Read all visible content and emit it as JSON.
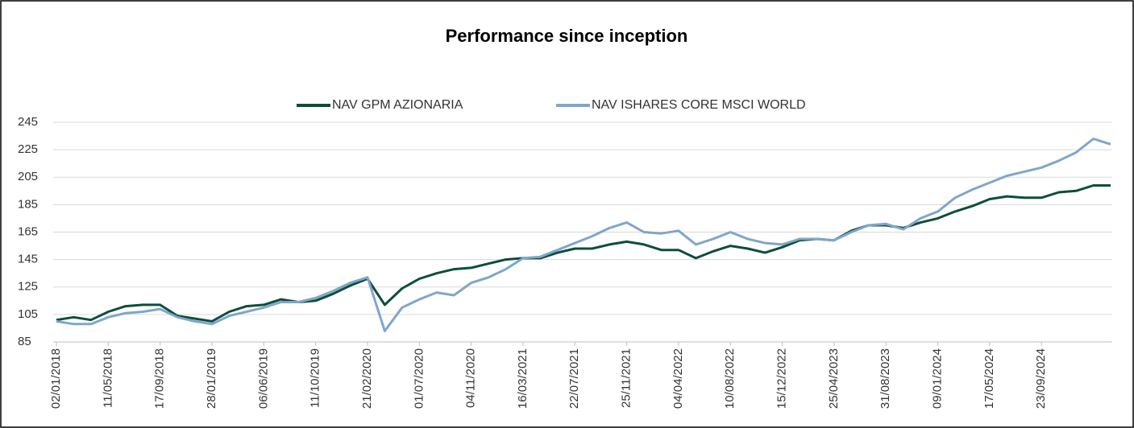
{
  "chart_data": {
    "type": "line",
    "title": "Performance since inception",
    "categories": [
      "02/01/2018",
      null,
      null,
      "11/05/2018",
      null,
      null,
      "17/09/2018",
      null,
      null,
      "28/01/2019",
      null,
      null,
      "06/06/2019",
      null,
      null,
      "11/10/2019",
      null,
      null,
      "21/02/2020",
      null,
      null,
      "01/07/2020",
      null,
      null,
      "04/11/2020",
      null,
      null,
      "16/03/2021",
      null,
      null,
      "22/07/2021",
      null,
      null,
      "25/11/2021",
      null,
      null,
      "04/04/2022",
      null,
      null,
      "10/08/2022",
      null,
      null,
      "15/12/2022",
      null,
      null,
      "25/04/2023",
      null,
      null,
      "31/08/2023",
      null,
      null,
      "09/01/2024",
      null,
      null,
      "17/05/2024",
      null,
      null,
      "23/09/2024",
      null,
      null,
      null,
      null
    ],
    "series": [
      {
        "name": "NAV GPM AZIONARIA",
        "color": "#0d4d3c",
        "values": [
          101,
          103,
          101,
          107,
          111,
          112,
          112,
          104,
          102,
          100,
          107,
          111,
          112,
          116,
          114,
          115,
          120,
          126,
          131,
          112,
          124,
          131,
          135,
          138,
          139,
          142,
          145,
          146,
          146,
          150,
          153,
          153,
          156,
          158,
          156,
          152,
          152,
          146,
          151,
          155,
          153,
          150,
          154,
          159,
          160,
          159,
          166,
          170,
          170,
          168,
          172,
          175,
          180,
          184,
          189,
          191,
          190,
          190,
          194,
          195,
          199,
          199
        ]
      },
      {
        "name": "NAV ISHARES CORE MSCI WORLD",
        "color": "#7fa6cb",
        "values": [
          100,
          98,
          98,
          103,
          106,
          107,
          109,
          103,
          100,
          98,
          104,
          107,
          110,
          114,
          114,
          117,
          122,
          128,
          132,
          93,
          110,
          116,
          121,
          119,
          128,
          132,
          138,
          146,
          147,
          152,
          157,
          162,
          168,
          172,
          165,
          164,
          166,
          156,
          160,
          165,
          160,
          157,
          156,
          160,
          160,
          159,
          165,
          170,
          171,
          167,
          175,
          180,
          190,
          196,
          201,
          206,
          209,
          212,
          217,
          223,
          233,
          229
        ]
      }
    ],
    "ylim": [
      85,
      245
    ],
    "yticks": [
      85,
      105,
      125,
      145,
      165,
      185,
      205,
      225,
      245
    ],
    "grid": true,
    "legend": "top"
  }
}
